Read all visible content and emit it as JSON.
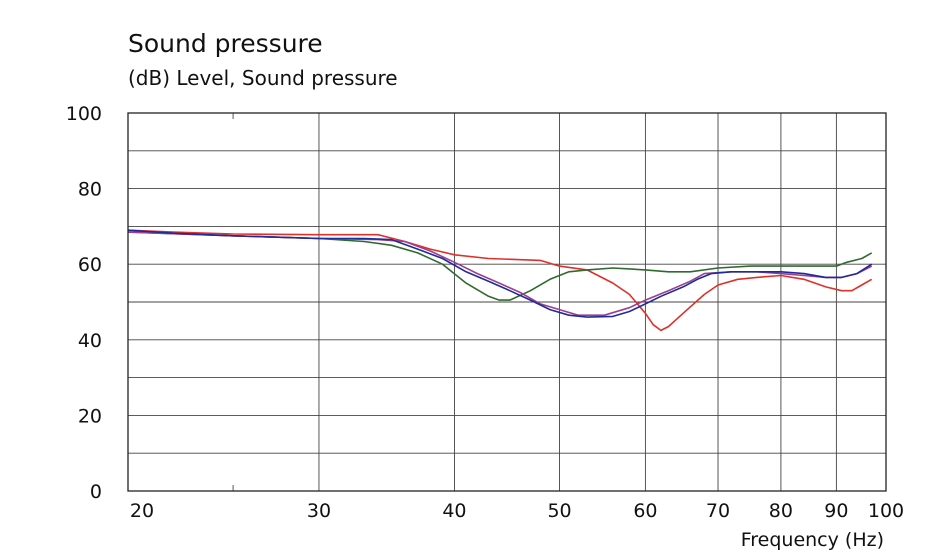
{
  "chart_data": {
    "type": "line",
    "title": "Sound pressure",
    "subtitle": "(dB)  Level, Sound pressure",
    "xlabel": "Frequency  (Hz)",
    "ylabel": "",
    "x_scale": "log",
    "xlim": [
      20,
      100
    ],
    "ylim": [
      0,
      100
    ],
    "x_ticks": [
      20,
      30,
      40,
      50,
      60,
      70,
      80,
      90,
      100
    ],
    "x_tick_labels": [
      "20",
      "30",
      "40",
      "50",
      "60",
      "70",
      "80",
      "90",
      "100"
    ],
    "y_ticks": [
      0,
      20,
      40,
      60,
      80,
      100
    ],
    "y_tick_labels": [
      "0",
      "20",
      "40",
      "60",
      "80",
      "100"
    ],
    "grid": true,
    "series": [
      {
        "name": "red",
        "color": "#e0302a",
        "points": [
          [
            20,
            69
          ],
          [
            22,
            68.5
          ],
          [
            25,
            68
          ],
          [
            30,
            67.8
          ],
          [
            34,
            67.8
          ],
          [
            36,
            66
          ],
          [
            38,
            64
          ],
          [
            40,
            62.5
          ],
          [
            43,
            61.5
          ],
          [
            48,
            61
          ],
          [
            50,
            59.5
          ],
          [
            53,
            58.5
          ],
          [
            56,
            55
          ],
          [
            58,
            52
          ],
          [
            60,
            47
          ],
          [
            61,
            44
          ],
          [
            62,
            42.5
          ],
          [
            63,
            43.5
          ],
          [
            65,
            47
          ],
          [
            68,
            52
          ],
          [
            70,
            54.5
          ],
          [
            73,
            56
          ],
          [
            76,
            56.5
          ],
          [
            80,
            57
          ],
          [
            84,
            56
          ],
          [
            88,
            54
          ],
          [
            91,
            53
          ],
          [
            93,
            53
          ],
          [
            95,
            54.5
          ],
          [
            97,
            56
          ]
        ]
      },
      {
        "name": "green",
        "color": "#2f6b2f",
        "points": [
          [
            20,
            68.5
          ],
          [
            25,
            67.5
          ],
          [
            30,
            66.8
          ],
          [
            33,
            66
          ],
          [
            35,
            65
          ],
          [
            37,
            63
          ],
          [
            39,
            60
          ],
          [
            41,
            55
          ],
          [
            43,
            51.5
          ],
          [
            44,
            50.5
          ],
          [
            45,
            50.5
          ],
          [
            47,
            53
          ],
          [
            49,
            56
          ],
          [
            51,
            58
          ],
          [
            53,
            58.5
          ],
          [
            56,
            59
          ],
          [
            60,
            58.5
          ],
          [
            63,
            58
          ],
          [
            66,
            58
          ],
          [
            70,
            59
          ],
          [
            75,
            59.5
          ],
          [
            80,
            59.5
          ],
          [
            85,
            59.5
          ],
          [
            90,
            59.5
          ],
          [
            92,
            60.5
          ],
          [
            95,
            61.5
          ],
          [
            97,
            63
          ]
        ]
      },
      {
        "name": "purple",
        "color": "#9b3f8f",
        "points": [
          [
            20,
            68.5
          ],
          [
            25,
            67.5
          ],
          [
            30,
            66.8
          ],
          [
            34,
            66.5
          ],
          [
            36,
            66
          ],
          [
            38,
            63.5
          ],
          [
            40,
            60.5
          ],
          [
            42,
            57.5
          ],
          [
            44,
            55
          ],
          [
            46,
            52.5
          ],
          [
            48,
            49.5
          ],
          [
            50,
            48
          ],
          [
            52,
            46.5
          ],
          [
            55,
            46.5
          ],
          [
            58,
            48.5
          ],
          [
            60,
            50.5
          ],
          [
            63,
            53
          ],
          [
            66,
            55.5
          ],
          [
            68,
            57.5
          ],
          [
            72,
            58
          ],
          [
            76,
            58
          ],
          [
            80,
            57.5
          ],
          [
            84,
            57
          ],
          [
            88,
            56.5
          ],
          [
            91,
            56.5
          ],
          [
            94,
            57.5
          ],
          [
            97,
            59.5
          ]
        ]
      },
      {
        "name": "blue",
        "color": "#1f2a9c",
        "points": [
          [
            20,
            69
          ],
          [
            22,
            68.2
          ],
          [
            25,
            67.5
          ],
          [
            30,
            66.8
          ],
          [
            33,
            66.8
          ],
          [
            35,
            66.5
          ],
          [
            37,
            64
          ],
          [
            39,
            61.5
          ],
          [
            41,
            58
          ],
          [
            43,
            55.5
          ],
          [
            45,
            53
          ],
          [
            47,
            50.5
          ],
          [
            49,
            48
          ],
          [
            51,
            46.5
          ],
          [
            53,
            46
          ],
          [
            56,
            46.2
          ],
          [
            58,
            47.5
          ],
          [
            60,
            49.5
          ],
          [
            62,
            51.5
          ],
          [
            65,
            54
          ],
          [
            67,
            56
          ],
          [
            69,
            57.5
          ],
          [
            72,
            58
          ],
          [
            76,
            58
          ],
          [
            80,
            58
          ],
          [
            84,
            57.5
          ],
          [
            88,
            56.5
          ],
          [
            91,
            56.5
          ],
          [
            94,
            57.5
          ],
          [
            97,
            60
          ]
        ]
      }
    ]
  }
}
